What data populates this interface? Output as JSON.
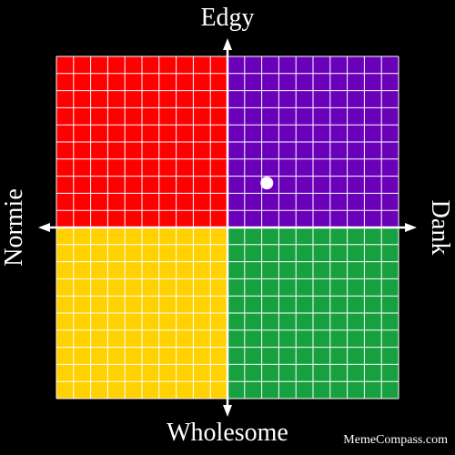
{
  "labels": {
    "top": "Edgy",
    "bottom": "Wholesome",
    "left": "Normie",
    "right": "Dank"
  },
  "watermark": "MemeCompass.com",
  "colors": {
    "background": "#000000",
    "grid_lines": "#ffffff",
    "top_left": "#ff0000",
    "top_right": "#6a00b8",
    "bottom_left": "#ffd100",
    "bottom_right": "#17a040",
    "marker": "#ffffff"
  },
  "chart_data": {
    "type": "scatter",
    "xlabel_left": "Normie",
    "xlabel_right": "Dank",
    "ylabel_bottom": "Wholesome",
    "ylabel_top": "Edgy",
    "xlim": [
      -10,
      10
    ],
    "ylim": [
      -10,
      10
    ],
    "grid": true,
    "grid_divisions": 20,
    "points": [
      {
        "x": 2.3,
        "y": 2.6
      }
    ]
  }
}
